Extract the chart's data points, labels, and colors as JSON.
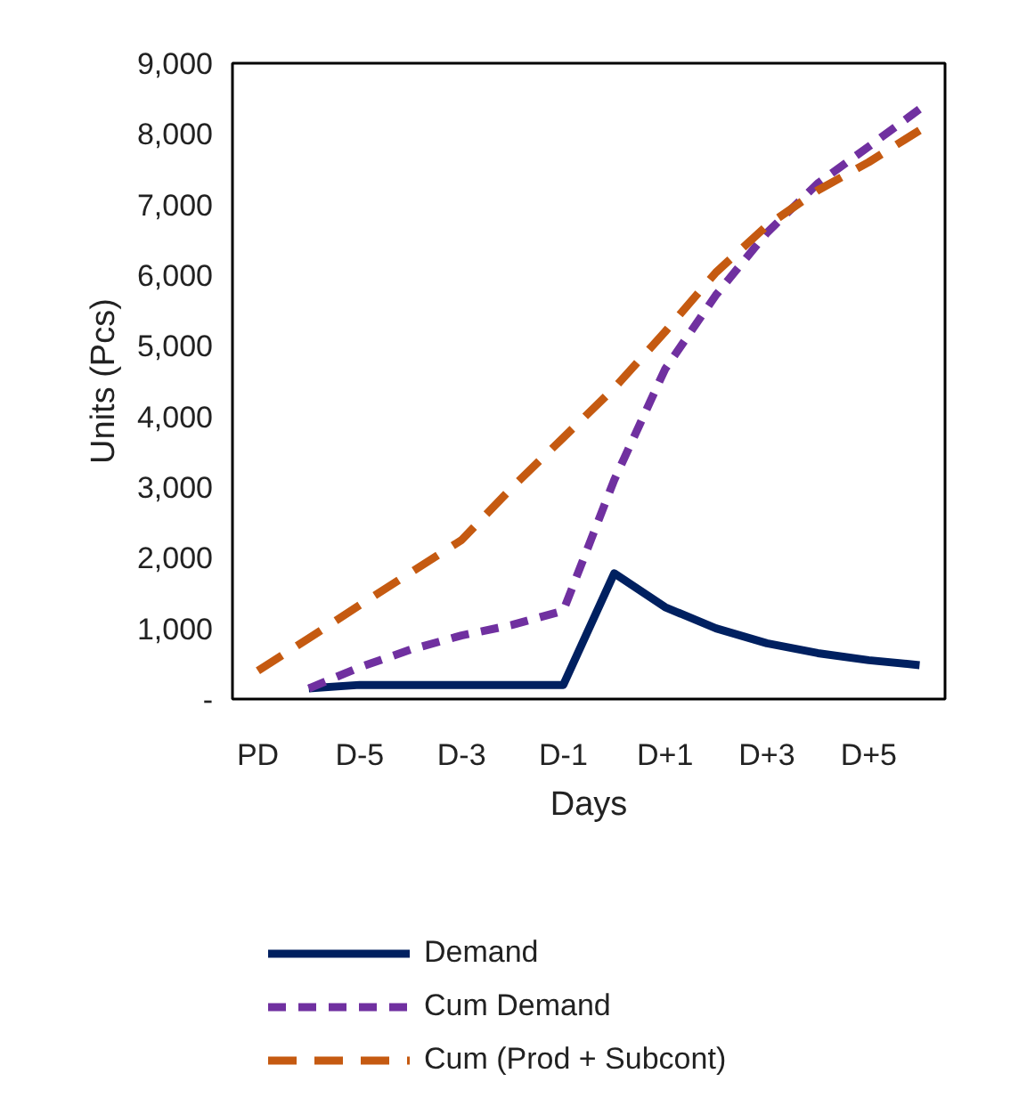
{
  "chart_data": {
    "type": "line",
    "xlabel": "Days",
    "ylabel": "Units (Pcs)",
    "categories": [
      "PD",
      null,
      "D-5",
      null,
      "D-3",
      null,
      "D-1",
      null,
      "D+1",
      null,
      "D+3",
      null,
      "D+5",
      null
    ],
    "series": [
      {
        "name": "Demand",
        "color": "#002060",
        "line_style": "solid",
        "values": [
          null,
          150,
          200,
          200,
          200,
          200,
          200,
          1780,
          1300,
          1000,
          790,
          650,
          550,
          480
        ]
      },
      {
        "name": "Cum Demand",
        "color": "#7030a0",
        "line_style": "dotted",
        "values": [
          null,
          150,
          450,
          700,
          900,
          1050,
          1250,
          3100,
          4670,
          5720,
          6600,
          7300,
          7820,
          8350
        ]
      },
      {
        "name": "Cum (Prod + Subcont)",
        "color": "#c55a11",
        "line_style": "dashed",
        "values": [
          400,
          860,
          1330,
          1790,
          2250,
          3000,
          3700,
          4400,
          5200,
          6040,
          6700,
          7200,
          7600,
          8050
        ]
      }
    ],
    "ylim": [
      0,
      9000
    ],
    "yticks": [
      {
        "value": 0,
        "label": "-"
      },
      {
        "value": 1000,
        "label": "1,000"
      },
      {
        "value": 2000,
        "label": "2,000"
      },
      {
        "value": 3000,
        "label": "3,000"
      },
      {
        "value": 4000,
        "label": "4,000"
      },
      {
        "value": 5000,
        "label": "5,000"
      },
      {
        "value": 6000,
        "label": "6,000"
      },
      {
        "value": 7000,
        "label": "7,000"
      },
      {
        "value": 8000,
        "label": "8,000"
      },
      {
        "value": 9000,
        "label": "9,000"
      }
    ],
    "grid": false,
    "legend": "bottom",
    "marker": "none"
  }
}
